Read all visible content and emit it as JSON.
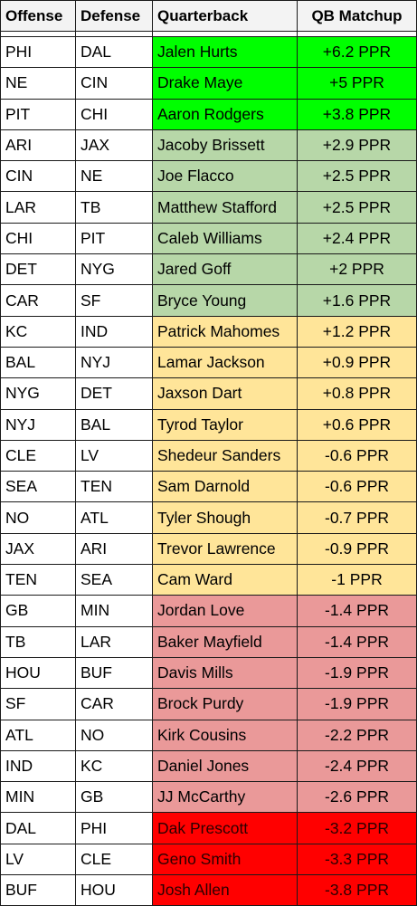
{
  "headers": {
    "offense": "Offense",
    "defense": "Defense",
    "quarterback": "Quarterback",
    "matchup": "QB Matchup"
  },
  "tier_colors": {
    "top": "#00ff00",
    "good": "#b7d7a8",
    "mid": "#ffe599",
    "bad": "#ea9999",
    "worst": "#ff0000"
  },
  "rows": [
    {
      "offense": "PHI",
      "defense": "DAL",
      "qb": "Jalen Hurts",
      "matchup": "+6.2 PPR",
      "tier": "top"
    },
    {
      "offense": "NE",
      "defense": "CIN",
      "qb": "Drake Maye",
      "matchup": "+5 PPR",
      "tier": "top"
    },
    {
      "offense": "PIT",
      "defense": "CHI",
      "qb": "Aaron Rodgers",
      "matchup": "+3.8 PPR",
      "tier": "top"
    },
    {
      "offense": "ARI",
      "defense": "JAX",
      "qb": "Jacoby Brissett",
      "matchup": "+2.9 PPR",
      "tier": "good"
    },
    {
      "offense": "CIN",
      "defense": "NE",
      "qb": "Joe Flacco",
      "matchup": "+2.5 PPR",
      "tier": "good"
    },
    {
      "offense": "LAR",
      "defense": "TB",
      "qb": "Matthew Stafford",
      "matchup": "+2.5 PPR",
      "tier": "good"
    },
    {
      "offense": "CHI",
      "defense": "PIT",
      "qb": "Caleb Williams",
      "matchup": "+2.4 PPR",
      "tier": "good"
    },
    {
      "offense": "DET",
      "defense": "NYG",
      "qb": "Jared Goff",
      "matchup": "+2 PPR",
      "tier": "good"
    },
    {
      "offense": "CAR",
      "defense": "SF",
      "qb": "Bryce Young",
      "matchup": "+1.6 PPR",
      "tier": "good"
    },
    {
      "offense": "KC",
      "defense": "IND",
      "qb": "Patrick Mahomes",
      "matchup": "+1.2 PPR",
      "tier": "mid"
    },
    {
      "offense": "BAL",
      "defense": "NYJ",
      "qb": "Lamar Jackson",
      "matchup": "+0.9 PPR",
      "tier": "mid"
    },
    {
      "offense": "NYG",
      "defense": "DET",
      "qb": "Jaxson Dart",
      "matchup": "+0.8 PPR",
      "tier": "mid"
    },
    {
      "offense": "NYJ",
      "defense": "BAL",
      "qb": "Tyrod Taylor",
      "matchup": "+0.6 PPR",
      "tier": "mid"
    },
    {
      "offense": "CLE",
      "defense": "LV",
      "qb": "Shedeur Sanders",
      "matchup": "-0.6 PPR",
      "tier": "mid"
    },
    {
      "offense": "SEA",
      "defense": "TEN",
      "qb": "Sam Darnold",
      "matchup": "-0.6 PPR",
      "tier": "mid"
    },
    {
      "offense": "NO",
      "defense": "ATL",
      "qb": "Tyler Shough",
      "matchup": "-0.7 PPR",
      "tier": "mid"
    },
    {
      "offense": "JAX",
      "defense": "ARI",
      "qb": "Trevor Lawrence",
      "matchup": "-0.9 PPR",
      "tier": "mid"
    },
    {
      "offense": "TEN",
      "defense": "SEA",
      "qb": "Cam Ward",
      "matchup": "-1 PPR",
      "tier": "mid"
    },
    {
      "offense": "GB",
      "defense": "MIN",
      "qb": "Jordan Love",
      "matchup": "-1.4 PPR",
      "tier": "bad"
    },
    {
      "offense": "TB",
      "defense": "LAR",
      "qb": "Baker Mayfield",
      "matchup": "-1.4 PPR",
      "tier": "bad"
    },
    {
      "offense": "HOU",
      "defense": "BUF",
      "qb": "Davis Mills",
      "matchup": "-1.9 PPR",
      "tier": "bad"
    },
    {
      "offense": "SF",
      "defense": "CAR",
      "qb": "Brock Purdy",
      "matchup": "-1.9 PPR",
      "tier": "bad"
    },
    {
      "offense": "ATL",
      "defense": "NO",
      "qb": "Kirk Cousins",
      "matchup": "-2.2 PPR",
      "tier": "bad"
    },
    {
      "offense": "IND",
      "defense": "KC",
      "qb": "Daniel Jones",
      "matchup": "-2.4 PPR",
      "tier": "bad"
    },
    {
      "offense": "MIN",
      "defense": "GB",
      "qb": "JJ McCarthy",
      "matchup": "-2.6 PPR",
      "tier": "bad"
    },
    {
      "offense": "DAL",
      "defense": "PHI",
      "qb": "Dak Prescott",
      "matchup": "-3.2 PPR",
      "tier": "worst"
    },
    {
      "offense": "LV",
      "defense": "CLE",
      "qb": "Geno Smith",
      "matchup": "-3.3 PPR",
      "tier": "worst"
    },
    {
      "offense": "BUF",
      "defense": "HOU",
      "qb": "Josh Allen",
      "matchup": "-3.8 PPR",
      "tier": "worst"
    }
  ]
}
